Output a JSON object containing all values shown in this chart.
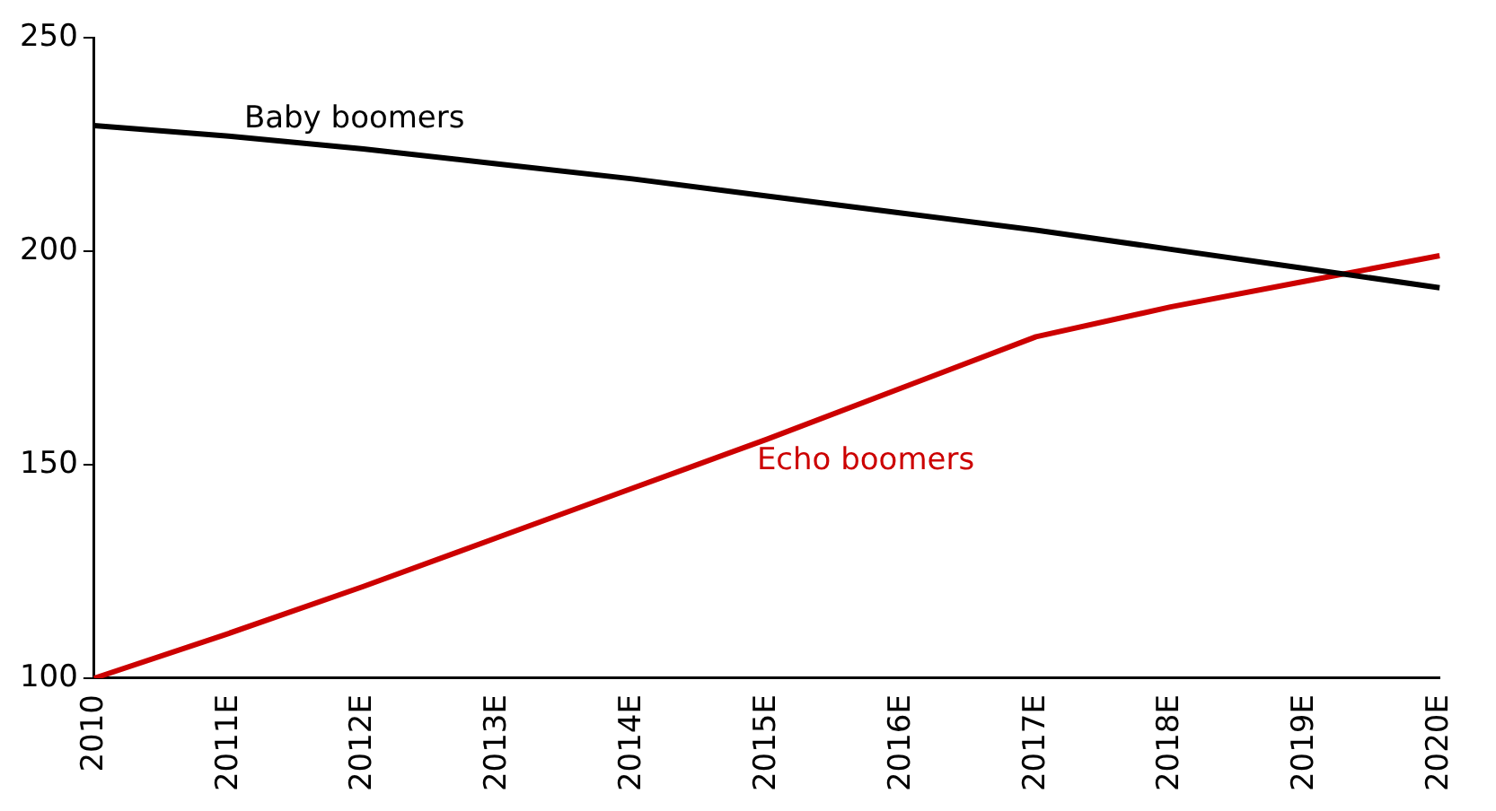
{
  "chart_data": {
    "type": "line",
    "categories": [
      "2010",
      "2011E",
      "2012E",
      "2013E",
      "2014E",
      "2015E",
      "2016E",
      "2017E",
      "2018E",
      "2019E",
      "2020E"
    ],
    "series": [
      {
        "name": "Baby boomers",
        "color": "#000000",
        "values": [
          229.5,
          227,
          224,
          220.5,
          217,
          213,
          209,
          205,
          200.5,
          196,
          191.5
        ]
      },
      {
        "name": "Echo boomers",
        "color": "#cc0000",
        "values": [
          100,
          110.5,
          121.5,
          133,
          144.5,
          156,
          168,
          180,
          187,
          193,
          199
        ]
      }
    ],
    "ylim": [
      100,
      250
    ],
    "yticks": [
      100,
      150,
      200,
      250
    ],
    "grid": false,
    "legend": false,
    "marker": "none",
    "line_style": "solid"
  }
}
